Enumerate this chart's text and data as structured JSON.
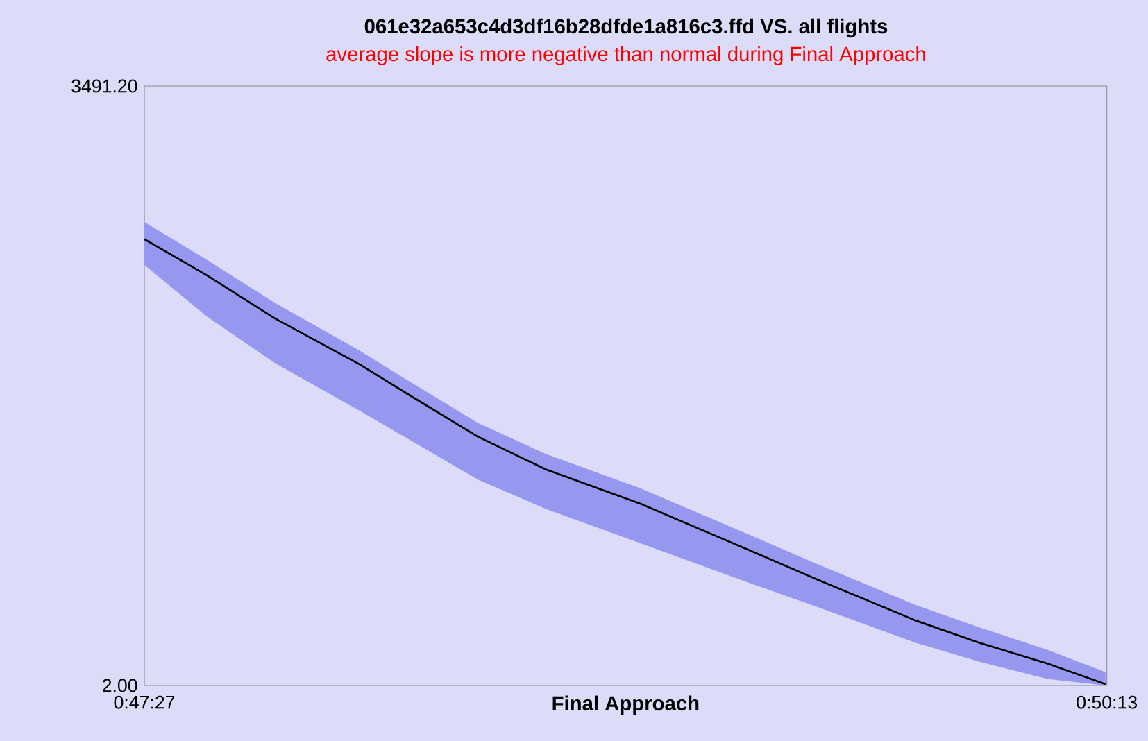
{
  "chart_data": {
    "type": "line",
    "title": "061e32a653c4d3df16b28dfde1a816c3.ffd  VS.  all flights",
    "subtitle": "average slope is more negative than normal during Final Approach",
    "xlabel": "Final Approach",
    "x": [
      0.790833,
      0.79382,
      0.79707,
      0.80116,
      0.80356,
      0.80681,
      0.81006,
      0.8146,
      0.8198,
      0.82305,
      0.82779,
      0.83084,
      0.83409,
      0.83688
    ],
    "series": [
      {
        "color": "#000000",
        "values": [
          2600,
          2390,
          2140,
          1870,
          1690,
          1450,
          1260,
          1060,
          790,
          620,
          380,
          250,
          130,
          10
        ],
        "lower": [
          2450,
          2150,
          1880,
          1600,
          1430,
          1200,
          1030,
          830,
          600,
          460,
          250,
          140,
          40,
          2
        ],
        "upper": [
          2700,
          2480,
          2230,
          1950,
          1770,
          1530,
          1350,
          1150,
          880,
          710,
          470,
          340,
          210,
          80
        ]
      }
    ],
    "xlim": [
      0.790833,
      0.836944
    ],
    "xticks": [
      {
        "value": 0.790833,
        "label": "0:47:27"
      },
      {
        "value": 0.836944,
        "label": "0:50:13"
      }
    ],
    "ylim": [
      2.0,
      3491.2
    ],
    "yticks": [
      {
        "value": 2.0,
        "label": "2.00"
      },
      {
        "value": 3491.2,
        "label": "3491.20"
      }
    ],
    "grid": false,
    "marker": "none",
    "line_style": "solid"
  }
}
